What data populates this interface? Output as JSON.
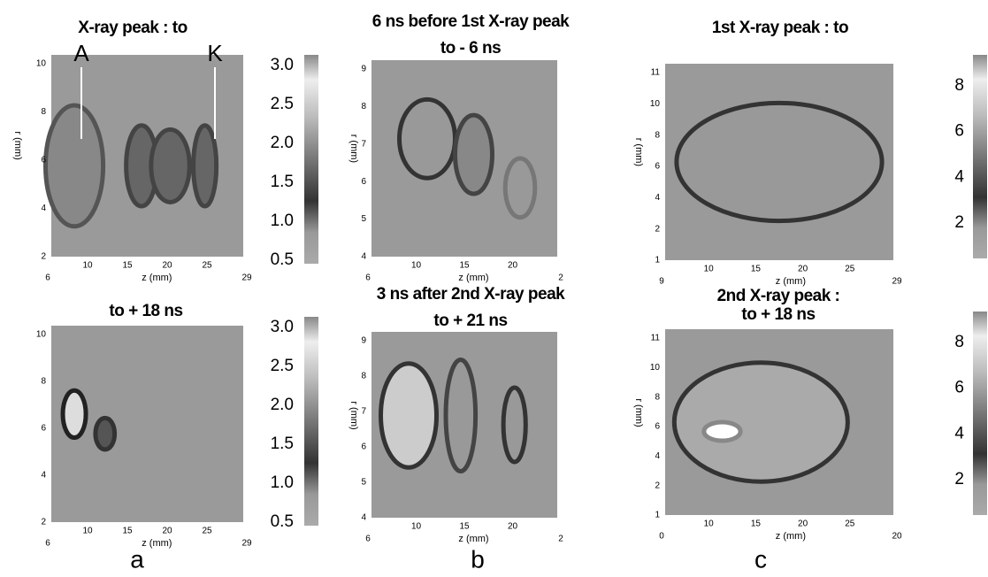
{
  "panels": [
    {
      "title": [
        "X-ray peak : to"
      ],
      "markers": [
        "A",
        "K"
      ],
      "y_label": "r (mm)",
      "x_label": "z  (mm)",
      "yticks": [
        "10",
        "8",
        "6",
        "4",
        "2"
      ],
      "xticks": [
        "6",
        "10",
        "15",
        "20",
        "25",
        "29"
      ]
    },
    {
      "title": [
        "6 ns before 1st X-ray peak",
        "to -  6 ns"
      ],
      "y_label": "r (mm)",
      "x_label": "z  (mm)",
      "yticks": [
        "9",
        "8",
        "7",
        "6",
        "5",
        "4"
      ],
      "xticks": [
        "6",
        "10",
        "15",
        "20",
        "2"
      ]
    },
    {
      "title": [
        "1st X-ray peak : to"
      ],
      "y_label": "r (mm)",
      "x_label": "z  (mm)",
      "yticks": [
        "11",
        "10",
        "8",
        "6",
        "4",
        "2",
        "1"
      ],
      "xticks": [
        "9",
        "10",
        "15",
        "20",
        "25",
        "29"
      ]
    },
    {
      "title": [
        "to + 18 ns"
      ],
      "x_label": "z  (mm)",
      "yticks": [
        "10",
        "8",
        "6",
        "4",
        "2"
      ],
      "xticks": [
        "6",
        "10",
        "15",
        "20",
        "25",
        "29"
      ]
    },
    {
      "title": [
        "3 ns after 2nd X-ray peak",
        "to + 21  ns"
      ],
      "y_label": "r (mm)",
      "x_label": "z  (mm)",
      "yticks": [
        "9",
        "8",
        "7",
        "6",
        "5",
        "4"
      ],
      "xticks": [
        "6",
        "10",
        "15",
        "20",
        "2"
      ]
    },
    {
      "title": [
        "2nd X-ray peak :",
        "to + 18 ns"
      ],
      "y_label": "r (mm)",
      "x_label": "z  (mm)",
      "yticks": [
        "11",
        "10",
        "8",
        "6",
        "4",
        "2",
        "1"
      ],
      "xticks": [
        "0",
        "10",
        "15",
        "20",
        "25",
        "20"
      ]
    }
  ],
  "colorbars": [
    {
      "ticks": [
        "3.0",
        "2.5",
        "2.0",
        "1.5",
        "1.0",
        "0.5"
      ]
    },
    {
      "ticks": [
        "8",
        "6",
        "4",
        "2"
      ]
    },
    {
      "ticks": [
        "3.0",
        "2.5",
        "2.0",
        "1.5",
        "1.0",
        "0.5"
      ]
    },
    {
      "ticks": [
        "8",
        "6",
        "4",
        "2"
      ]
    }
  ],
  "column_labels": [
    "a",
    "b",
    "c"
  ]
}
